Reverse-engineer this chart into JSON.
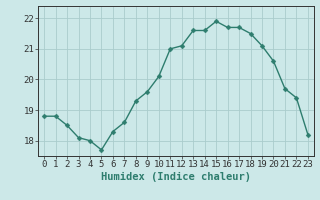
{
  "x": [
    0,
    1,
    2,
    3,
    4,
    5,
    6,
    7,
    8,
    9,
    10,
    11,
    12,
    13,
    14,
    15,
    16,
    17,
    18,
    19,
    20,
    21,
    22,
    23
  ],
  "y": [
    18.8,
    18.8,
    18.5,
    18.1,
    18.0,
    17.7,
    18.3,
    18.6,
    19.3,
    19.6,
    20.1,
    21.0,
    21.1,
    21.6,
    21.6,
    21.9,
    21.7,
    21.7,
    21.5,
    21.1,
    20.6,
    19.7,
    19.4,
    18.2
  ],
  "line_color": "#2e7d6e",
  "marker_color": "#2e7d6e",
  "bg_color": "#cce8e8",
  "grid_color": "#aacccc",
  "axis_color": "#333333",
  "xlabel": "Humidex (Indice chaleur)",
  "xlim": [
    -0.5,
    23.5
  ],
  "ylim": [
    17.5,
    22.4
  ],
  "yticks": [
    18,
    19,
    20,
    21,
    22
  ],
  "xticks": [
    0,
    1,
    2,
    3,
    4,
    5,
    6,
    7,
    8,
    9,
    10,
    11,
    12,
    13,
    14,
    15,
    16,
    17,
    18,
    19,
    20,
    21,
    22,
    23
  ],
  "xlabel_fontsize": 7.5,
  "tick_fontsize": 6.5,
  "line_width": 1.0,
  "marker_size": 2.5
}
